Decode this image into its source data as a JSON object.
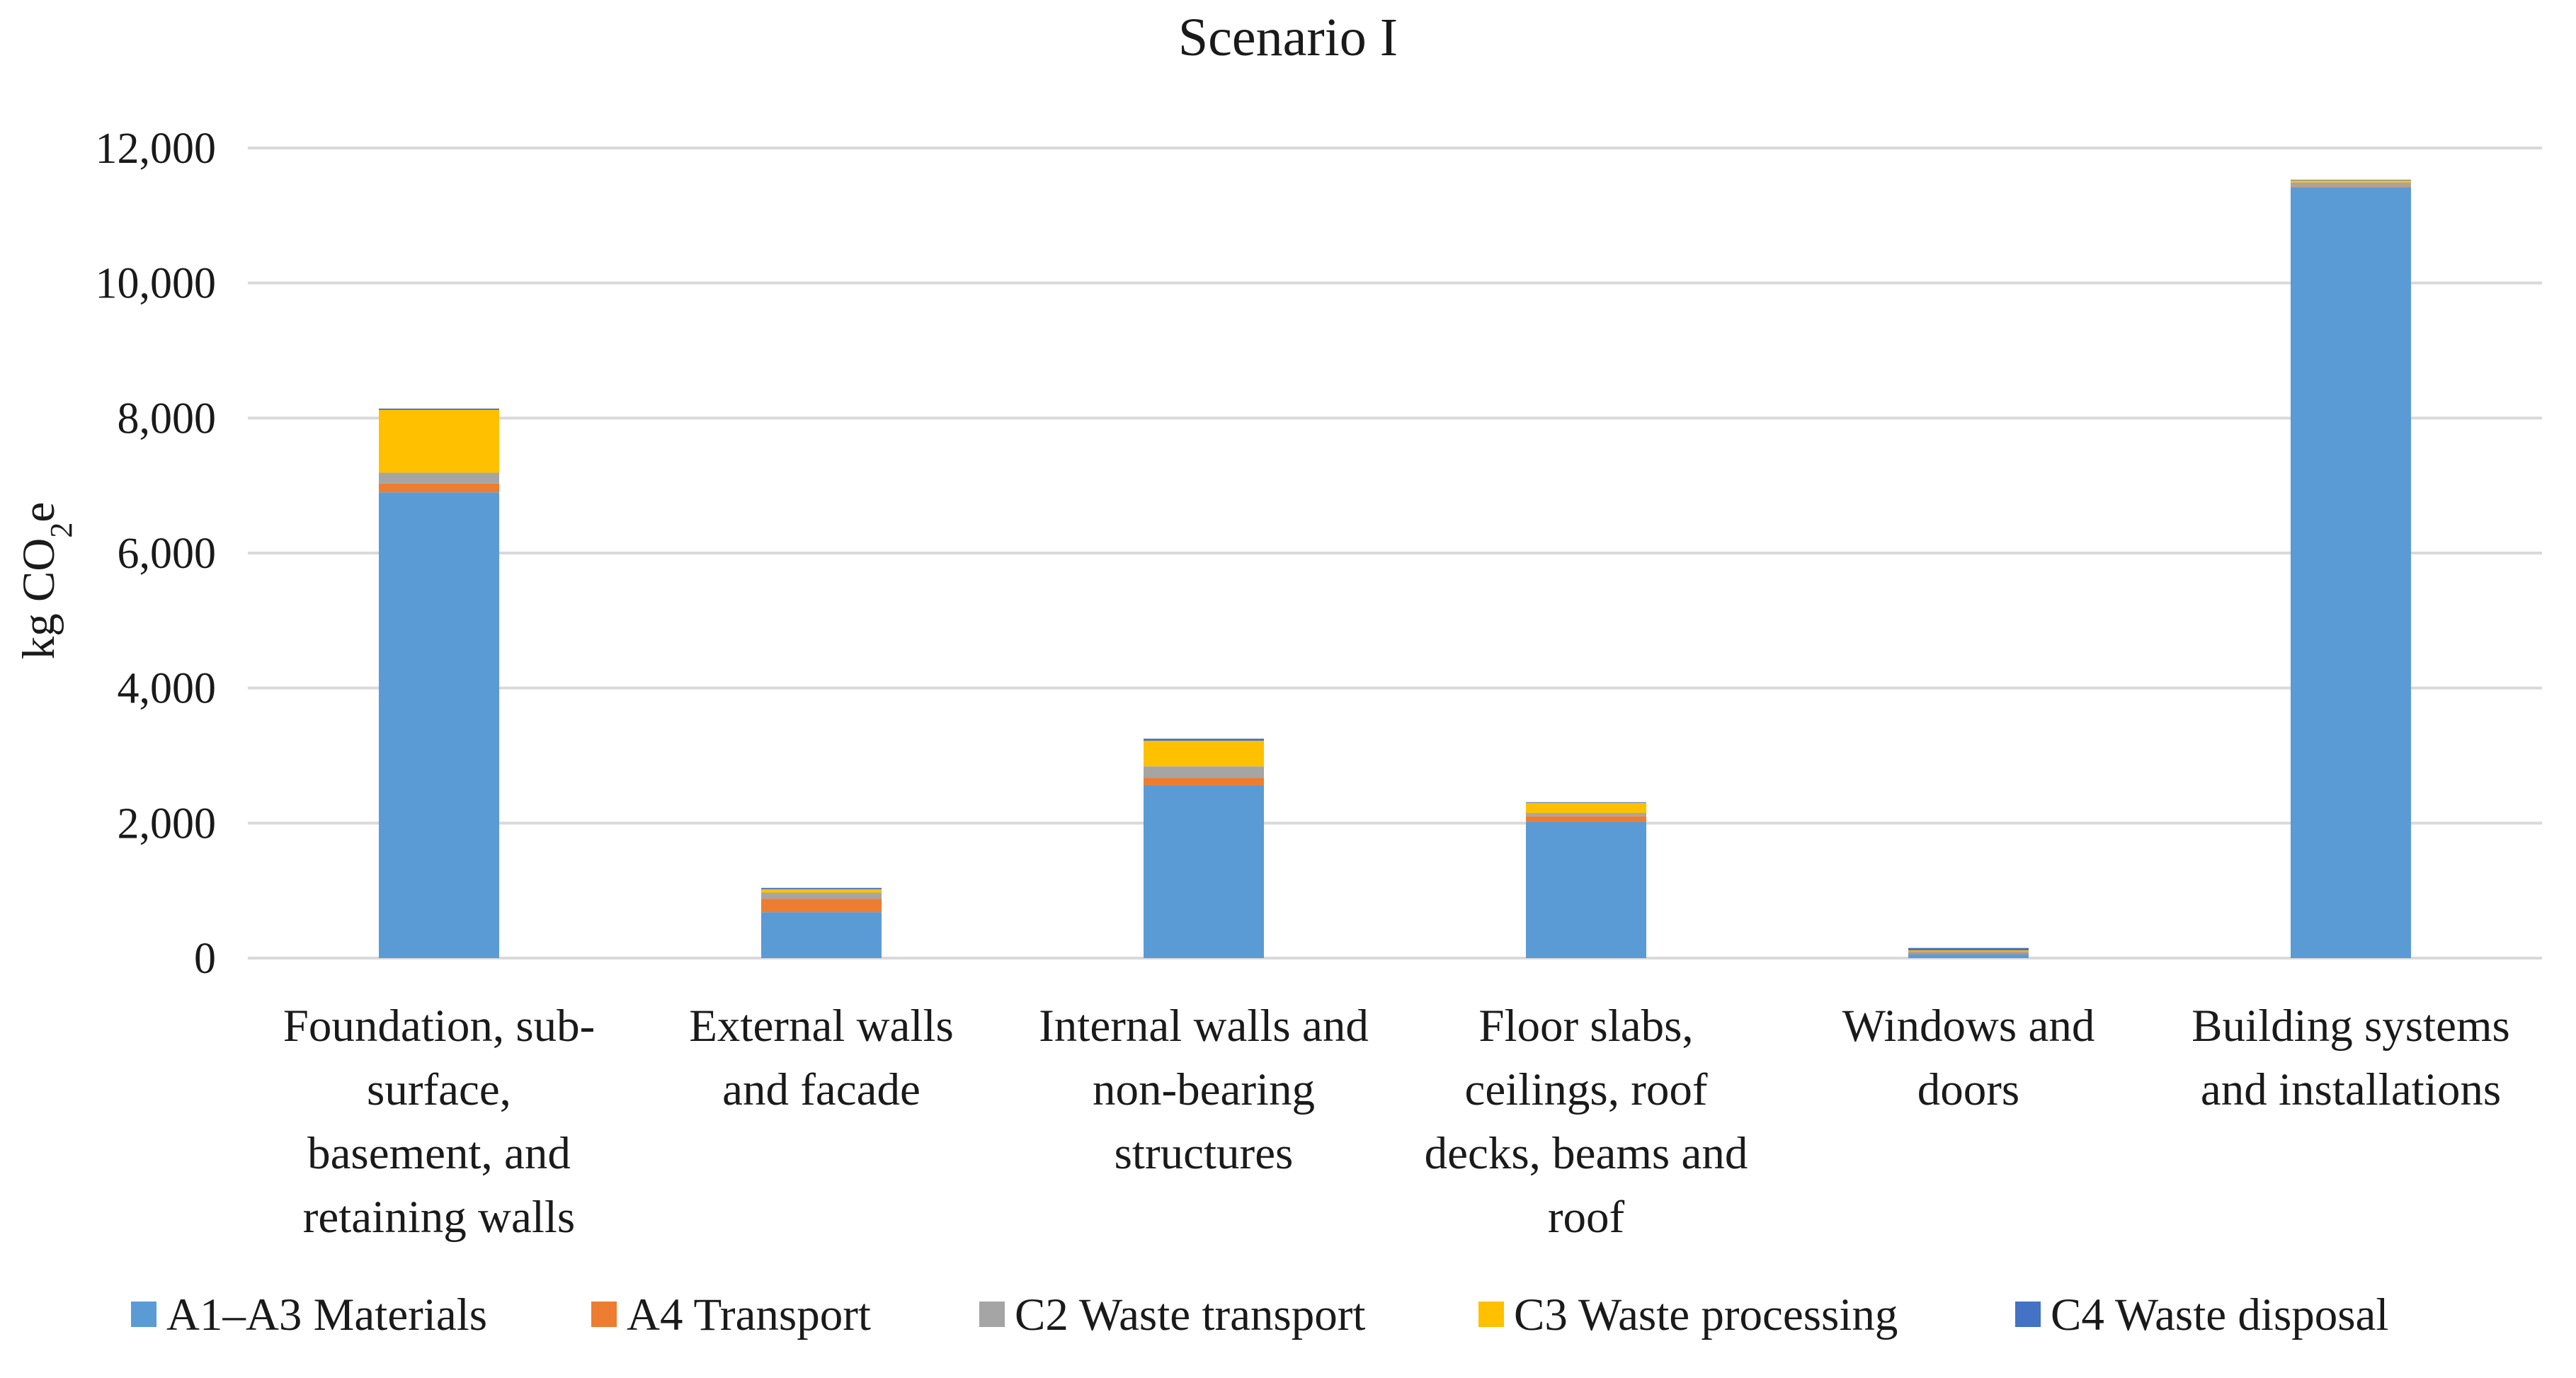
{
  "chart_data": {
    "type": "bar",
    "stacked": true,
    "title": "Scenario I",
    "ylabel": "kg CO",
    "ylabel_sub": "2",
    "ylabel_tail": "e",
    "xlabel": "",
    "ylim": [
      0,
      12000
    ],
    "yticks": [
      0,
      2000,
      4000,
      6000,
      8000,
      10000,
      12000
    ],
    "ytick_labels": [
      "0",
      "2,000",
      "4,000",
      "6,000",
      "8,000",
      "10,000",
      "12,000"
    ],
    "grid": true,
    "legend_position": "bottom",
    "categories": [
      [
        "Foundation, sub-",
        "surface,",
        "basement, and",
        "retaining walls"
      ],
      [
        "External walls",
        "and facade"
      ],
      [
        "Internal walls and",
        "non-bearing",
        "structures"
      ],
      [
        "Floor slabs,",
        "ceilings, roof",
        "decks, beams and",
        "roof"
      ],
      [
        "Windows and",
        "doors"
      ],
      [
        "Building systems",
        "and installations"
      ]
    ],
    "series": [
      {
        "name": "A1–A3 Materials",
        "color": "#5b9bd5",
        "values": [
          6900,
          680,
          2560,
          2020,
          60,
          11420
        ]
      },
      {
        "name": "A4 Transport",
        "color": "#ed7d31",
        "values": [
          130,
          200,
          110,
          80,
          20,
          10
        ]
      },
      {
        "name": "C2 Waste transport",
        "color": "#a5a5a5",
        "values": [
          160,
          90,
          170,
          50,
          20,
          60
        ]
      },
      {
        "name": "C3 Waste processing",
        "color": "#ffc000",
        "values": [
          930,
          50,
          380,
          150,
          15,
          30
        ]
      },
      {
        "name": "C4 Waste disposal",
        "color": "#4472c4",
        "values": [
          20,
          20,
          30,
          10,
          35,
          10
        ]
      }
    ]
  }
}
